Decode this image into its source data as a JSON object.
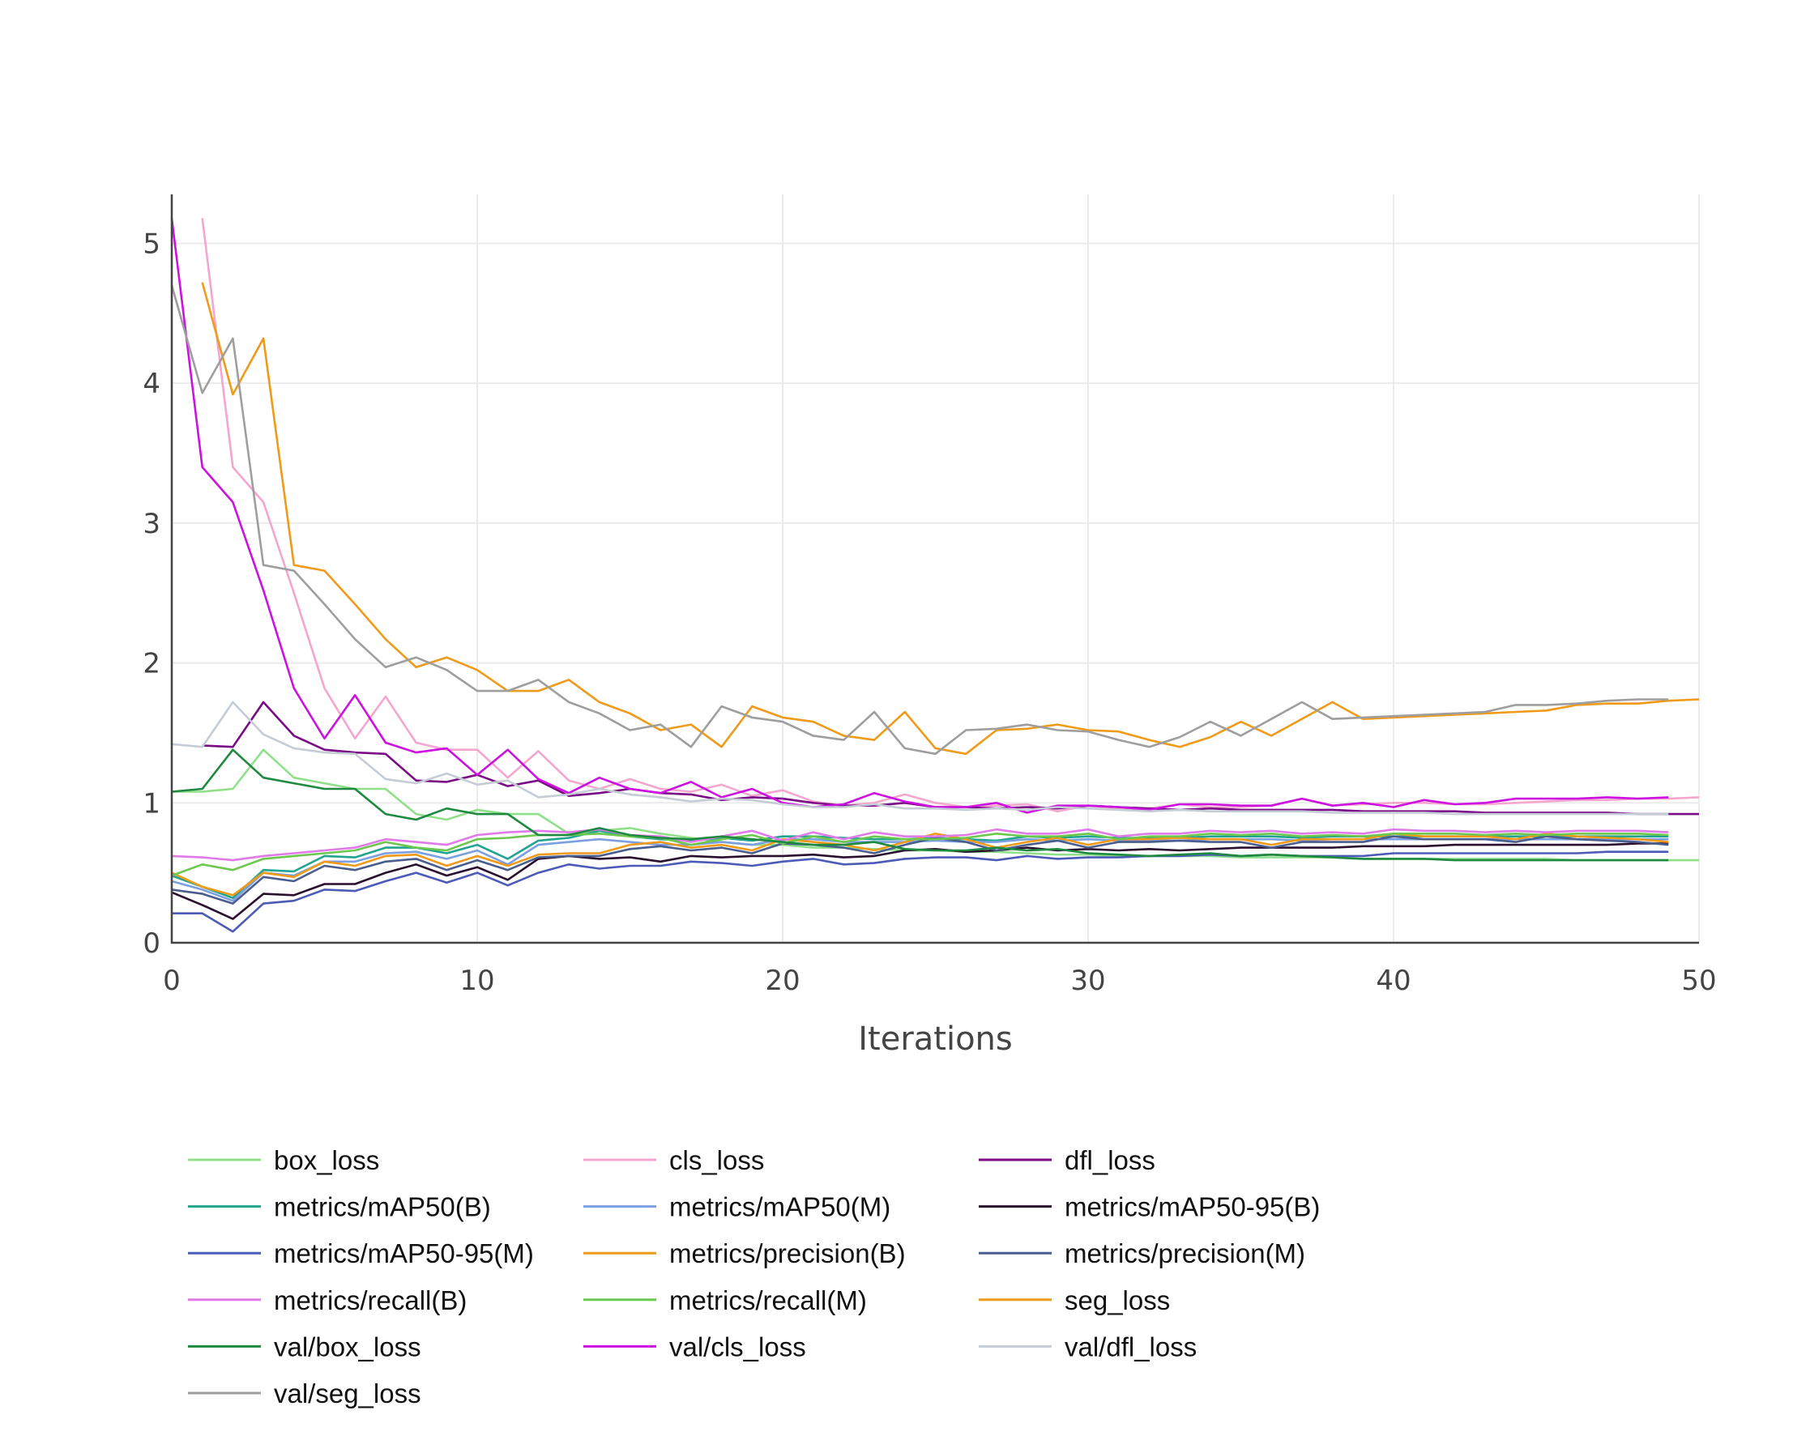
{
  "chart_data": {
    "type": "line",
    "title": "",
    "xlabel": "Iterations",
    "ylabel": "",
    "xlim": [
      0,
      50
    ],
    "ylim": [
      0,
      5.35
    ],
    "x_ticks": [
      0,
      10,
      20,
      30,
      40,
      50
    ],
    "y_ticks": [
      0,
      1,
      2,
      3,
      4,
      5
    ],
    "grid": true,
    "legend_position": "bottom",
    "legend_columns": 3,
    "series": [
      {
        "name": "box_loss",
        "color": "#90e08a",
        "x_start": 0,
        "values": [
          1.08,
          1.08,
          1.1,
          1.38,
          1.18,
          1.14,
          1.1,
          1.1,
          0.92,
          0.88,
          0.95,
          0.92,
          0.92,
          0.78,
          0.8,
          0.82,
          0.78,
          0.75,
          0.72,
          0.7,
          0.7,
          0.68,
          0.68,
          0.67,
          0.66,
          0.66,
          0.65,
          0.65,
          0.64,
          0.63,
          0.63,
          0.62,
          0.62,
          0.62,
          0.62,
          0.61,
          0.61,
          0.61,
          0.61,
          0.6,
          0.6,
          0.6,
          0.6,
          0.6,
          0.6,
          0.6,
          0.59,
          0.59,
          0.59,
          0.59,
          0.59
        ]
      },
      {
        "name": "cls_loss",
        "color": "#f4a6cf",
        "x_start": 1,
        "values": [
          5.18,
          3.4,
          3.15,
          2.5,
          1.82,
          1.46,
          1.76,
          1.43,
          1.38,
          1.38,
          1.18,
          1.37,
          1.16,
          1.1,
          1.17,
          1.1,
          1.08,
          1.13,
          1.05,
          1.09,
          1.01,
          0.98,
          1.0,
          1.06,
          1.0,
          0.97,
          0.98,
          0.99,
          0.94,
          0.98,
          0.96,
          0.96,
          0.99,
          0.97,
          0.97,
          0.98,
          1.03,
          0.98,
          0.99,
          1.0,
          1.0,
          0.99,
          0.99,
          1.0,
          1.01,
          1.02,
          1.02,
          1.03,
          1.03,
          1.04
        ]
      },
      {
        "name": "dfl_loss",
        "color": "#7a0a85",
        "x_start": 1,
        "values": [
          1.41,
          1.4,
          1.72,
          1.48,
          1.38,
          1.36,
          1.35,
          1.16,
          1.15,
          1.2,
          1.12,
          1.16,
          1.05,
          1.07,
          1.1,
          1.07,
          1.06,
          1.02,
          1.04,
          1.03,
          1.0,
          0.98,
          0.98,
          1.0,
          0.97,
          0.97,
          0.96,
          0.97,
          0.96,
          0.98,
          0.97,
          0.96,
          0.95,
          0.96,
          0.95,
          0.95,
          0.95,
          0.95,
          0.94,
          0.94,
          0.94,
          0.94,
          0.93,
          0.93,
          0.93,
          0.93,
          0.93,
          0.92,
          0.92,
          0.92
        ]
      },
      {
        "name": "metrics/mAP50(B)",
        "color": "#22a58f",
        "x_start": 0,
        "values": [
          0.48,
          0.4,
          0.32,
          0.52,
          0.51,
          0.62,
          0.61,
          0.68,
          0.68,
          0.64,
          0.7,
          0.6,
          0.73,
          0.75,
          0.8,
          0.76,
          0.74,
          0.73,
          0.75,
          0.73,
          0.76,
          0.76,
          0.75,
          0.74,
          0.74,
          0.75,
          0.74,
          0.73,
          0.76,
          0.75,
          0.76,
          0.75,
          0.75,
          0.75,
          0.76,
          0.76,
          0.76,
          0.75,
          0.76,
          0.76,
          0.76,
          0.76,
          0.76,
          0.76,
          0.76,
          0.76,
          0.76,
          0.76,
          0.76,
          0.76
        ]
      },
      {
        "name": "metrics/mAP50(M)",
        "color": "#7b9fe0",
        "x_start": 0,
        "values": [
          0.44,
          0.38,
          0.3,
          0.5,
          0.48,
          0.58,
          0.58,
          0.64,
          0.65,
          0.6,
          0.66,
          0.56,
          0.7,
          0.72,
          0.74,
          0.72,
          0.7,
          0.7,
          0.72,
          0.7,
          0.74,
          0.74,
          0.72,
          0.72,
          0.72,
          0.73,
          0.72,
          0.72,
          0.74,
          0.73,
          0.74,
          0.73,
          0.73,
          0.73,
          0.74,
          0.74,
          0.74,
          0.73,
          0.74,
          0.74,
          0.74,
          0.74,
          0.74,
          0.74,
          0.74,
          0.74,
          0.74,
          0.74,
          0.74,
          0.74
        ]
      },
      {
        "name": "metrics/mAP50-95(B)",
        "color": "#2a0f2e",
        "x_start": 0,
        "values": [
          0.36,
          0.27,
          0.17,
          0.35,
          0.34,
          0.42,
          0.42,
          0.5,
          0.56,
          0.48,
          0.54,
          0.45,
          0.6,
          0.62,
          0.6,
          0.61,
          0.58,
          0.62,
          0.61,
          0.62,
          0.62,
          0.63,
          0.61,
          0.62,
          0.66,
          0.67,
          0.65,
          0.66,
          0.68,
          0.66,
          0.67,
          0.66,
          0.67,
          0.66,
          0.67,
          0.68,
          0.68,
          0.68,
          0.68,
          0.69,
          0.69,
          0.69,
          0.7,
          0.7,
          0.7,
          0.7,
          0.7,
          0.7,
          0.71,
          0.71
        ]
      },
      {
        "name": "metrics/mAP50-95(M)",
        "color": "#4c5bb8",
        "x_start": 0,
        "values": [
          0.21,
          0.21,
          0.08,
          0.28,
          0.3,
          0.38,
          0.37,
          0.44,
          0.5,
          0.43,
          0.5,
          0.41,
          0.5,
          0.56,
          0.53,
          0.55,
          0.55,
          0.58,
          0.57,
          0.55,
          0.58,
          0.6,
          0.56,
          0.57,
          0.6,
          0.61,
          0.61,
          0.59,
          0.62,
          0.6,
          0.61,
          0.61,
          0.62,
          0.62,
          0.63,
          0.62,
          0.63,
          0.62,
          0.62,
          0.62,
          0.64,
          0.64,
          0.64,
          0.64,
          0.64,
          0.64,
          0.64,
          0.65,
          0.65,
          0.65
        ]
      },
      {
        "name": "metrics/precision(B)",
        "color": "#f09a1a",
        "x_start": 0,
        "values": [
          0.5,
          0.4,
          0.34,
          0.5,
          0.47,
          0.58,
          0.55,
          0.62,
          0.63,
          0.55,
          0.62,
          0.55,
          0.63,
          0.64,
          0.64,
          0.7,
          0.72,
          0.68,
          0.7,
          0.66,
          0.74,
          0.72,
          0.7,
          0.66,
          0.72,
          0.78,
          0.74,
          0.68,
          0.72,
          0.75,
          0.7,
          0.74,
          0.74,
          0.75,
          0.74,
          0.74,
          0.7,
          0.74,
          0.74,
          0.74,
          0.78,
          0.76,
          0.76,
          0.76,
          0.74,
          0.78,
          0.76,
          0.75,
          0.74,
          0.72
        ]
      },
      {
        "name": "metrics/precision(M)",
        "color": "#4a5d8f",
        "x_start": 0,
        "values": [
          0.38,
          0.35,
          0.28,
          0.47,
          0.44,
          0.55,
          0.52,
          0.58,
          0.6,
          0.52,
          0.59,
          0.52,
          0.61,
          0.62,
          0.62,
          0.67,
          0.69,
          0.66,
          0.68,
          0.64,
          0.71,
          0.7,
          0.68,
          0.64,
          0.7,
          0.75,
          0.72,
          0.66,
          0.7,
          0.73,
          0.68,
          0.72,
          0.72,
          0.73,
          0.72,
          0.72,
          0.68,
          0.72,
          0.72,
          0.72,
          0.76,
          0.74,
          0.74,
          0.74,
          0.72,
          0.76,
          0.74,
          0.73,
          0.72,
          0.7
        ]
      },
      {
        "name": "metrics/recall(B)",
        "color": "#e07ae8",
        "x_start": 0,
        "values": [
          0.62,
          0.61,
          0.59,
          0.62,
          0.64,
          0.66,
          0.68,
          0.74,
          0.72,
          0.7,
          0.77,
          0.79,
          0.8,
          0.79,
          0.81,
          0.77,
          0.76,
          0.72,
          0.76,
          0.8,
          0.73,
          0.79,
          0.74,
          0.79,
          0.76,
          0.76,
          0.77,
          0.81,
          0.78,
          0.78,
          0.81,
          0.76,
          0.78,
          0.78,
          0.8,
          0.79,
          0.8,
          0.78,
          0.79,
          0.78,
          0.81,
          0.8,
          0.8,
          0.79,
          0.8,
          0.79,
          0.8,
          0.8,
          0.8,
          0.79
        ]
      },
      {
        "name": "metrics/recall(M)",
        "color": "#6cc84e",
        "x_start": 0,
        "values": [
          0.48,
          0.56,
          0.52,
          0.6,
          0.62,
          0.64,
          0.66,
          0.72,
          0.68,
          0.66,
          0.74,
          0.75,
          0.77,
          0.77,
          0.78,
          0.76,
          0.75,
          0.7,
          0.74,
          0.77,
          0.71,
          0.76,
          0.72,
          0.76,
          0.74,
          0.74,
          0.75,
          0.78,
          0.76,
          0.76,
          0.78,
          0.74,
          0.76,
          0.76,
          0.78,
          0.77,
          0.78,
          0.76,
          0.77,
          0.76,
          0.78,
          0.78,
          0.78,
          0.77,
          0.78,
          0.77,
          0.78,
          0.78,
          0.78,
          0.77
        ]
      },
      {
        "name": "seg_loss",
        "color": "#f09a1a",
        "x_start": 1,
        "values": [
          4.72,
          3.92,
          4.32,
          2.7,
          2.66,
          2.42,
          2.17,
          1.97,
          2.04,
          1.95,
          1.8,
          1.8,
          1.88,
          1.72,
          1.64,
          1.52,
          1.56,
          1.4,
          1.69,
          1.61,
          1.58,
          1.48,
          1.45,
          1.65,
          1.39,
          1.35,
          1.52,
          1.53,
          1.56,
          1.52,
          1.51,
          1.45,
          1.4,
          1.47,
          1.58,
          1.48,
          1.6,
          1.72,
          1.6,
          1.61,
          1.62,
          1.63,
          1.64,
          1.65,
          1.66,
          1.7,
          1.71,
          1.71,
          1.73,
          1.74
        ]
      },
      {
        "name": "val/box_loss",
        "color": "#1e8a40",
        "x_start": 0,
        "values": [
          1.08,
          1.1,
          1.38,
          1.18,
          1.14,
          1.1,
          1.1,
          0.92,
          0.88,
          0.96,
          0.92,
          0.92,
          0.77,
          0.77,
          0.82,
          0.77,
          0.75,
          0.74,
          0.76,
          0.74,
          0.72,
          0.7,
          0.7,
          0.72,
          0.67,
          0.66,
          0.66,
          0.68,
          0.66,
          0.67,
          0.64,
          0.63,
          0.62,
          0.63,
          0.64,
          0.62,
          0.63,
          0.62,
          0.61,
          0.6,
          0.6,
          0.6,
          0.59,
          0.59,
          0.59,
          0.59,
          0.59,
          0.59,
          0.59,
          0.59
        ]
      },
      {
        "name": "val/cls_loss",
        "color": "#cc11e0",
        "x_start": 0,
        "values": [
          5.18,
          3.4,
          3.15,
          2.52,
          1.82,
          1.46,
          1.77,
          1.43,
          1.36,
          1.39,
          1.2,
          1.38,
          1.17,
          1.07,
          1.18,
          1.1,
          1.07,
          1.15,
          1.04,
          1.1,
          1.0,
          0.97,
          0.99,
          1.07,
          1.01,
          0.97,
          0.97,
          1.0,
          0.93,
          0.98,
          0.98,
          0.97,
          0.95,
          0.99,
          0.99,
          0.98,
          0.98,
          1.03,
          0.98,
          1.0,
          0.97,
          1.02,
          0.99,
          1.0,
          1.03,
          1.03,
          1.03,
          1.04,
          1.03,
          1.04
        ]
      },
      {
        "name": "val/dfl_loss",
        "color": "#c5ccd6",
        "x_start": 0,
        "values": [
          1.42,
          1.4,
          1.72,
          1.49,
          1.39,
          1.36,
          1.35,
          1.17,
          1.14,
          1.21,
          1.13,
          1.16,
          1.04,
          1.06,
          1.1,
          1.06,
          1.04,
          1.01,
          1.03,
          1.02,
          0.99,
          0.97,
          0.97,
          0.99,
          0.96,
          0.96,
          0.95,
          0.96,
          0.95,
          0.97,
          0.96,
          0.95,
          0.94,
          0.95,
          0.94,
          0.94,
          0.94,
          0.94,
          0.93,
          0.93,
          0.93,
          0.93,
          0.92,
          0.92,
          0.92,
          0.92,
          0.92,
          0.92,
          0.92,
          0.92
        ]
      },
      {
        "name": "val/seg_loss",
        "color": "#9e9e9e",
        "x_start": 0,
        "values": [
          4.7,
          3.93,
          4.32,
          2.7,
          2.66,
          2.42,
          2.17,
          1.97,
          2.04,
          1.95,
          1.8,
          1.8,
          1.88,
          1.72,
          1.64,
          1.52,
          1.56,
          1.4,
          1.69,
          1.61,
          1.58,
          1.48,
          1.45,
          1.65,
          1.39,
          1.35,
          1.52,
          1.53,
          1.56,
          1.52,
          1.51,
          1.45,
          1.4,
          1.47,
          1.58,
          1.48,
          1.6,
          1.72,
          1.6,
          1.61,
          1.62,
          1.63,
          1.64,
          1.65,
          1.7,
          1.7,
          1.71,
          1.73,
          1.74,
          1.74
        ]
      }
    ]
  }
}
